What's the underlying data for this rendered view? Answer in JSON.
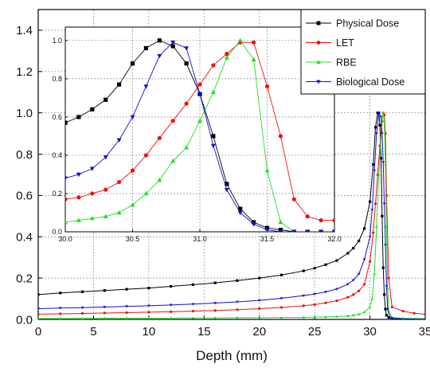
{
  "chart_data": [
    {
      "id": "main",
      "type": "line",
      "xlabel": "Depth (mm)",
      "ylabel": "",
      "xlim": [
        0,
        35
      ],
      "ylim": [
        0,
        1.5
      ],
      "xticks": [
        0,
        5,
        10,
        15,
        20,
        25,
        30,
        35
      ],
      "yticks": [
        0.0,
        0.2,
        0.4,
        0.6,
        0.8,
        1.0,
        1.2,
        1.4
      ],
      "xtick_labels": [
        "0",
        "5",
        "10",
        "15",
        "20",
        "25",
        "30",
        "35"
      ],
      "ytick_labels": [
        "0.0",
        "0.2",
        "0.4",
        "0.6",
        "0.8",
        "1.0",
        "1.2",
        "1.4"
      ],
      "grid": "dotted",
      "legend": "top-right",
      "series": [
        {
          "name": "Physical Dose",
          "color": "#000000",
          "marker": "square",
          "x": [
            0,
            2,
            4,
            6,
            8,
            10,
            12,
            14,
            16,
            18,
            20,
            22,
            24,
            25,
            26,
            27,
            28,
            28.5,
            29,
            29.5,
            30,
            30.3,
            30.5,
            30.7,
            30.8,
            30.9,
            31.0,
            31.1,
            31.2,
            31.3,
            31.4,
            31.5,
            31.7,
            32,
            35
          ],
          "y": [
            0.12,
            0.128,
            0.134,
            0.14,
            0.146,
            0.152,
            0.16,
            0.168,
            0.177,
            0.188,
            0.2,
            0.215,
            0.235,
            0.248,
            0.265,
            0.285,
            0.32,
            0.345,
            0.38,
            0.44,
            0.57,
            0.75,
            0.93,
            1.0,
            1.0,
            0.94,
            0.78,
            0.5,
            0.25,
            0.12,
            0.05,
            0.02,
            0.01,
            0.005,
            0.0
          ]
        },
        {
          "name": "LET",
          "color": "#ee1111",
          "marker": "circle",
          "x": [
            0,
            2,
            4,
            6,
            8,
            10,
            12,
            14,
            16,
            18,
            20,
            22,
            24,
            25,
            26,
            27,
            28,
            28.5,
            29,
            29.5,
            30,
            30.3,
            30.5,
            30.7,
            30.9,
            31.0,
            31.1,
            31.2,
            31.3,
            31.4,
            31.5,
            31.7,
            32,
            33,
            34,
            35
          ],
          "y": [
            0.025,
            0.027,
            0.029,
            0.031,
            0.033,
            0.035,
            0.037,
            0.04,
            0.043,
            0.047,
            0.052,
            0.058,
            0.066,
            0.072,
            0.08,
            0.09,
            0.107,
            0.12,
            0.138,
            0.17,
            0.28,
            0.42,
            0.56,
            0.7,
            0.84,
            0.91,
            0.96,
            1.0,
            0.99,
            0.9,
            0.6,
            0.2,
            0.06,
            0.04,
            0.03,
            0.025
          ]
        },
        {
          "name": "RBE",
          "color": "#22dd22",
          "marker": "triangle-up",
          "x": [
            0,
            2,
            4,
            6,
            8,
            10,
            12,
            14,
            16,
            18,
            20,
            22,
            24,
            25,
            26,
            27,
            28,
            28.5,
            29,
            29.5,
            30,
            30.2,
            30.4,
            30.6,
            30.8,
            31.0,
            31.1,
            31.2,
            31.3,
            31.4,
            31.5,
            31.6,
            31.7,
            32,
            33,
            35
          ],
          "y": [
            0.005,
            0.005,
            0.005,
            0.006,
            0.006,
            0.006,
            0.006,
            0.007,
            0.007,
            0.008,
            0.008,
            0.009,
            0.01,
            0.011,
            0.012,
            0.014,
            0.017,
            0.02,
            0.025,
            0.035,
            0.06,
            0.1,
            0.22,
            0.45,
            0.7,
            0.88,
            0.96,
            1.0,
            0.96,
            0.75,
            0.45,
            0.15,
            0.04,
            0.01,
            0.005,
            0.005
          ]
        },
        {
          "name": "Biological Dose",
          "color": "#1111cc",
          "marker": "triangle-down",
          "x": [
            0,
            2,
            4,
            6,
            8,
            10,
            12,
            14,
            16,
            18,
            20,
            22,
            24,
            25,
            26,
            27,
            28,
            28.5,
            29,
            29.5,
            30,
            30.2,
            30.4,
            30.6,
            30.8,
            31.0,
            31.1,
            31.2,
            31.3,
            31.4,
            31.5,
            31.6,
            31.8,
            32,
            35
          ],
          "y": [
            0.052,
            0.055,
            0.057,
            0.06,
            0.063,
            0.066,
            0.07,
            0.074,
            0.079,
            0.085,
            0.092,
            0.102,
            0.115,
            0.123,
            0.133,
            0.147,
            0.17,
            0.19,
            0.22,
            0.29,
            0.4,
            0.53,
            0.72,
            0.9,
            1.0,
            0.98,
            0.9,
            0.76,
            0.56,
            0.36,
            0.16,
            0.05,
            0.01,
            0.005,
            0.0
          ]
        }
      ]
    },
    {
      "id": "inset",
      "type": "line",
      "xlim": [
        30.0,
        32.0
      ],
      "ylim": [
        0,
        1.07
      ],
      "xticks": [
        30.0,
        30.5,
        31.0,
        31.5,
        32.0
      ],
      "yticks": [
        0.0,
        0.2,
        0.4,
        0.6,
        0.8,
        1.0
      ],
      "xtick_labels": [
        "30.0",
        "30.5",
        "31.0",
        "31.5",
        "32.0"
      ],
      "ytick_labels": [
        "0.0",
        "0.2",
        "0.4",
        "0.6",
        "0.8",
        "1.0"
      ],
      "grid": "dotted",
      "series": [
        {
          "name": "Physical Dose",
          "color": "#000000",
          "marker": "square",
          "x": [
            30.0,
            30.1,
            30.2,
            30.3,
            30.4,
            30.5,
            30.6,
            30.7,
            30.8,
            30.9,
            31.0,
            31.1,
            31.2,
            31.3,
            31.4,
            31.5,
            31.6,
            31.7,
            31.8,
            31.9,
            32.0
          ],
          "y": [
            0.57,
            0.6,
            0.64,
            0.69,
            0.77,
            0.88,
            0.96,
            1.0,
            0.97,
            0.88,
            0.72,
            0.5,
            0.25,
            0.12,
            0.05,
            0.02,
            0.01,
            0.0,
            0.0,
            0.0,
            0.0
          ]
        },
        {
          "name": "LET",
          "color": "#ee1111",
          "marker": "circle",
          "x": [
            30.0,
            30.1,
            30.2,
            30.3,
            30.4,
            30.5,
            30.6,
            30.7,
            30.8,
            30.9,
            31.0,
            31.1,
            31.2,
            31.3,
            31.4,
            31.5,
            31.6,
            31.7,
            31.8,
            31.9,
            32.0
          ],
          "y": [
            0.17,
            0.18,
            0.2,
            0.22,
            0.26,
            0.32,
            0.4,
            0.49,
            0.58,
            0.67,
            0.77,
            0.87,
            0.93,
            0.99,
            0.99,
            0.76,
            0.5,
            0.17,
            0.08,
            0.06,
            0.06
          ]
        },
        {
          "name": "RBE",
          "color": "#22dd22",
          "marker": "triangle-up",
          "x": [
            30.0,
            30.1,
            30.2,
            30.3,
            30.4,
            30.5,
            30.6,
            30.7,
            30.8,
            30.9,
            31.0,
            31.1,
            31.2,
            31.3,
            31.4,
            31.5,
            31.6,
            31.7,
            31.8,
            31.9,
            32.0
          ],
          "y": [
            0.05,
            0.06,
            0.07,
            0.08,
            0.1,
            0.14,
            0.2,
            0.27,
            0.37,
            0.44,
            0.58,
            0.73,
            0.91,
            1.0,
            0.9,
            0.32,
            0.05,
            0.0,
            0.0,
            0.0,
            0.0
          ]
        },
        {
          "name": "Biological Dose",
          "color": "#1111cc",
          "marker": "triangle-down",
          "x": [
            30.0,
            30.1,
            30.2,
            30.3,
            30.4,
            30.5,
            30.6,
            30.7,
            30.8,
            30.9,
            31.0,
            31.1,
            31.2,
            31.3,
            31.4,
            31.5,
            31.6,
            31.7,
            31.8,
            31.9,
            32.0
          ],
          "y": [
            0.28,
            0.3,
            0.33,
            0.39,
            0.48,
            0.6,
            0.76,
            0.92,
            0.99,
            0.96,
            0.72,
            0.45,
            0.22,
            0.1,
            0.04,
            0.01,
            0.0,
            0.0,
            0.0,
            0.0,
            0.0
          ]
        }
      ]
    }
  ]
}
